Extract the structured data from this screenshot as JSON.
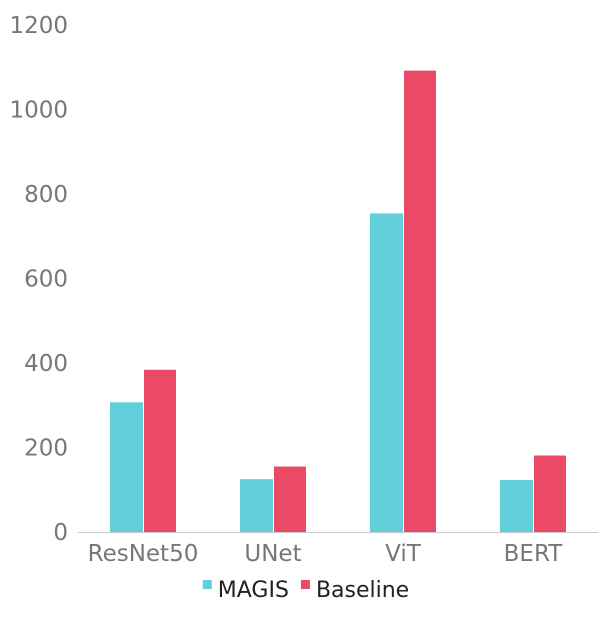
{
  "chart_data": {
    "type": "bar",
    "categories": [
      "ResNet50",
      "UNet",
      "ViT",
      "BERT"
    ],
    "series": [
      {
        "name": "MAGIS",
        "color": "#62d0da",
        "values": [
          307,
          125,
          754,
          123
        ]
      },
      {
        "name": "Baseline",
        "color": "#ea4a66",
        "values": [
          384,
          155,
          1092,
          181
        ]
      }
    ],
    "ylim": [
      0,
      1200
    ],
    "yticks": [
      0,
      200,
      400,
      600,
      800,
      1000,
      1200
    ],
    "legend": "bottom",
    "grid": false,
    "title": "",
    "xlabel": "",
    "ylabel": ""
  }
}
